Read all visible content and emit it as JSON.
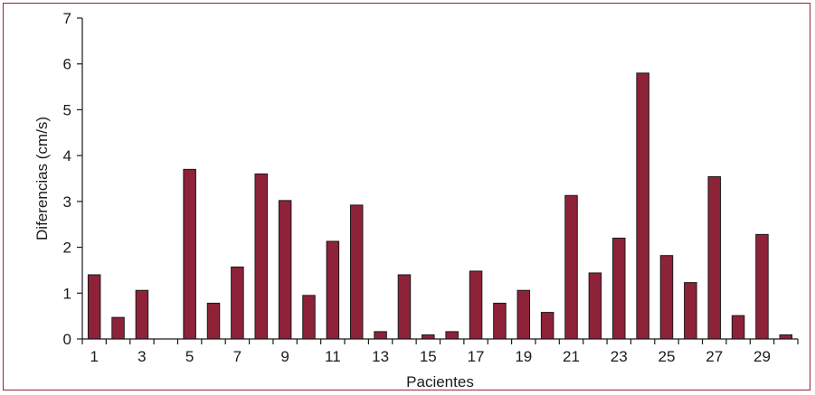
{
  "chart_data": {
    "type": "bar",
    "title": "",
    "xlabel": "Pacientes",
    "ylabel": "Diferencias (cm/s)",
    "ylim": [
      0,
      7
    ],
    "yticks": [
      0,
      1,
      2,
      3,
      4,
      5,
      6,
      7
    ],
    "x_tick_labels": [
      "1",
      "3",
      "5",
      "7",
      "9",
      "11",
      "13",
      "15",
      "17",
      "19",
      "21",
      "23",
      "25",
      "27",
      "29"
    ],
    "categories": [
      1,
      2,
      3,
      4,
      5,
      6,
      7,
      8,
      9,
      10,
      11,
      12,
      13,
      14,
      15,
      16,
      17,
      18,
      19,
      20,
      21,
      22,
      23,
      24,
      25,
      26,
      27,
      28,
      29,
      30
    ],
    "values": [
      1.4,
      0.47,
      1.06,
      0,
      3.7,
      0.78,
      1.57,
      3.6,
      3.02,
      0.95,
      2.13,
      2.92,
      0.16,
      1.4,
      0.09,
      0.16,
      1.48,
      0.78,
      1.06,
      0.58,
      3.13,
      1.44,
      2.2,
      5.8,
      1.82,
      1.23,
      3.54,
      0.51,
      2.28,
      0.09
    ],
    "bar_color": "#8e2239",
    "grid": false,
    "legend": "none"
  }
}
